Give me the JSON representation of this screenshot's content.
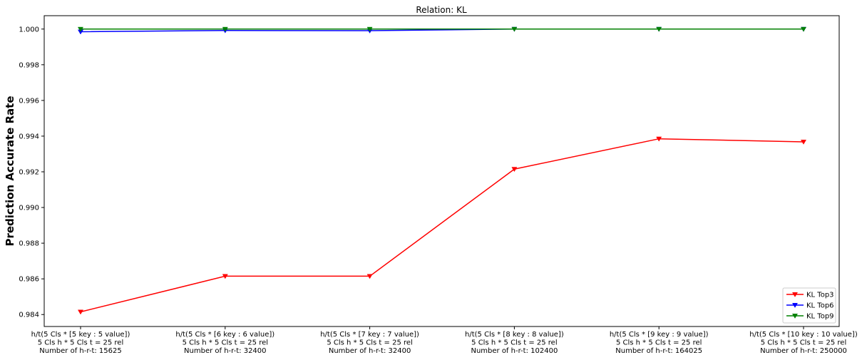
{
  "chart_data": {
    "type": "line",
    "title": "Relation: KL",
    "xlabel": "",
    "ylabel": "Prediction Accurate Rate",
    "categories": [
      [
        "h/t(5 Cls * [5 key : 5 value])",
        "5 Cls h * 5 Cls t = 25 rel",
        "Number of h-r-t: 15625"
      ],
      [
        "h/t(5 Cls * [6 key : 6 value])",
        "5 Cls h * 5 Cls t = 25 rel",
        "Number of h-r-t: 32400"
      ],
      [
        "h/t(5 Cls * [7 key : 7 value])",
        "5 Cls h * 5 Cls t = 25 rel",
        "Number of h-r-t: 32400"
      ],
      [
        "h/t(5 Cls * [8 key : 8 value])",
        "5 Cls h * 5 Cls t = 25 rel",
        "Number of h-r-t: 102400"
      ],
      [
        "h/t(5 Cls * [9 key : 9 value])",
        "5 Cls h * 5 Cls t = 25 rel",
        "Number of h-r-t: 164025"
      ],
      [
        "h/t(5 Cls * [10 key : 10 value])",
        "5 Cls h * 5 Cls t = 25 rel",
        "Number of h-r-t: 250000"
      ]
    ],
    "ylim": [
      0.98333,
      1.00075
    ],
    "yticks": [
      "0.984",
      "0.986",
      "0.988",
      "0.990",
      "0.992",
      "0.994",
      "0.996",
      "0.998",
      "1.000"
    ],
    "series": [
      {
        "name": "KL Top3",
        "color": "#ff0000",
        "marker": "triangle-down",
        "values": [
          0.98415,
          0.98615,
          0.98615,
          0.99215,
          0.99385,
          0.99368
        ]
      },
      {
        "name": "KL Top6",
        "color": "#0000ff",
        "marker": "triangle-down",
        "values": [
          0.99985,
          0.99992,
          0.99991,
          1.0,
          1.0,
          1.0
        ]
      },
      {
        "name": "KL Top9",
        "color": "#008000",
        "marker": "triangle-down",
        "values": [
          1.0,
          1.0,
          1.0,
          1.0,
          1.0,
          1.0
        ]
      }
    ],
    "legend_position": "lower-right",
    "grid": false
  }
}
